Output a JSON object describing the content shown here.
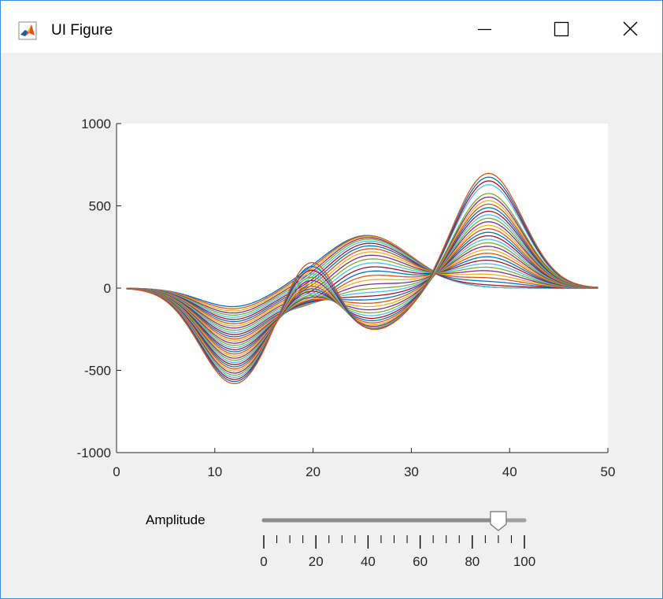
{
  "window": {
    "title": "UI Figure",
    "icon": "matlab-logo-icon",
    "controls": [
      "minimize-icon",
      "maximize-icon",
      "close-icon"
    ]
  },
  "slider": {
    "label": "Amplitude",
    "min": 0,
    "max": 100,
    "value": 90,
    "major_ticks": [
      "0",
      "20",
      "40",
      "60",
      "80",
      "100"
    ],
    "minor_tick_step": 5
  },
  "colors": {
    "series": [
      "#0072BD",
      "#D95319",
      "#EDB120",
      "#7E2F8E",
      "#77AC30",
      "#4DBEEE",
      "#A2142F"
    ],
    "axes": "#262626",
    "plot_bg": "#ffffff",
    "window_border": "#3c8fd6"
  },
  "chart_data": {
    "type": "line",
    "title": "",
    "xlabel": "",
    "ylabel": "",
    "xlim": [
      0,
      50
    ],
    "ylim": [
      -1000,
      1000
    ],
    "xticks": [
      0,
      10,
      20,
      30,
      40,
      50
    ],
    "yticks": [
      -1000,
      -500,
      0,
      500,
      1000
    ],
    "x_range": [
      1,
      49
    ],
    "series_count": 37,
    "components": [
      {
        "center": 12,
        "width": 3.5,
        "peak_amplitude": -580
      },
      {
        "center": 20,
        "width": 2.5,
        "peak_amplitude": 340
      },
      {
        "center": 25.5,
        "width": 4.5,
        "peak_amplitude": 320
      },
      {
        "center": 37.8,
        "width": 3.5,
        "peak_amplitude": 720
      }
    ],
    "grid": false
  }
}
